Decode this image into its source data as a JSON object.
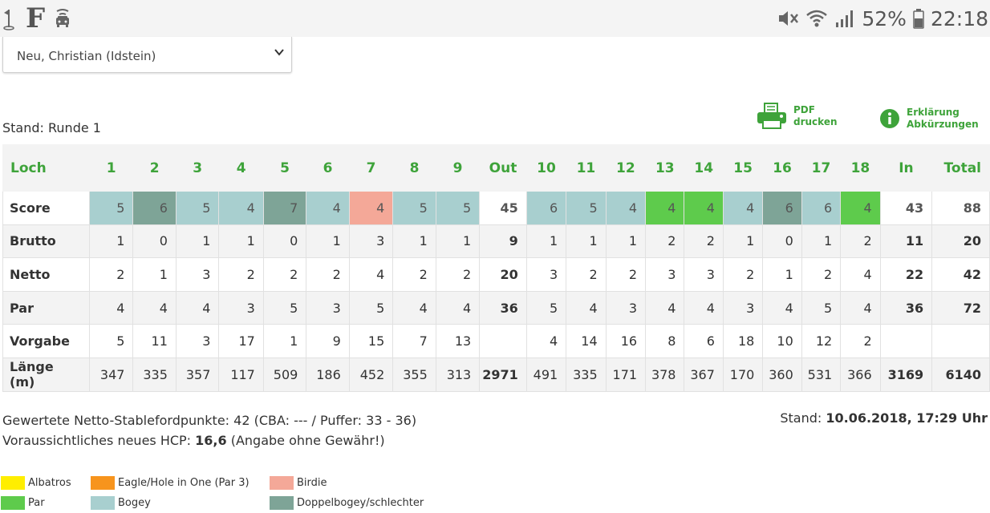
{
  "status_bar": {
    "left_icons": [
      "golf-flag-icon",
      "faz-logo-icon",
      "car-icon"
    ],
    "faz_letter": "F",
    "battery": "52%",
    "time": "22:18"
  },
  "player_select": {
    "value": "Neu, Christian (Idstein)"
  },
  "stand_runde": "Stand: Runde 1",
  "actions": {
    "pdf": {
      "line1": "PDF",
      "line2": "drucken"
    },
    "info": {
      "line1": "Erklärung",
      "line2": "Abkürzungen"
    }
  },
  "colors": {
    "accent": "#3ea33a",
    "albatros": "#ffee00",
    "eagle": "#f7941d",
    "birdie": "#f4a898",
    "par": "#5ecb4c",
    "bogey": "#a8cfcf",
    "double_bogey": "#7ea497"
  },
  "table": {
    "headers": [
      "Loch",
      "1",
      "2",
      "3",
      "4",
      "5",
      "6",
      "7",
      "8",
      "9",
      "Out",
      "10",
      "11",
      "12",
      "13",
      "14",
      "15",
      "16",
      "17",
      "18",
      "In",
      "Total"
    ],
    "rows": [
      {
        "label": "Score",
        "values": [
          "5",
          "6",
          "5",
          "4",
          "7",
          "4",
          "4",
          "5",
          "5",
          "45",
          "6",
          "5",
          "4",
          "4",
          "4",
          "4",
          "6",
          "6",
          "4",
          "43",
          "88"
        ],
        "classes": [
          "bogey",
          "double",
          "bogey",
          "bogey",
          "double",
          "bogey",
          "birdie",
          "bogey",
          "bogey",
          "",
          "bogey",
          "bogey",
          "bogey",
          "par",
          "par",
          "bogey",
          "double",
          "bogey",
          "par",
          "",
          ""
        ]
      },
      {
        "label": "Brutto",
        "values": [
          "1",
          "0",
          "1",
          "1",
          "0",
          "1",
          "3",
          "1",
          "1",
          "9",
          "1",
          "1",
          "1",
          "2",
          "2",
          "1",
          "0",
          "1",
          "2",
          "11",
          "20"
        ]
      },
      {
        "label": "Netto",
        "values": [
          "2",
          "1",
          "3",
          "2",
          "2",
          "2",
          "4",
          "2",
          "2",
          "20",
          "3",
          "2",
          "2",
          "3",
          "3",
          "2",
          "1",
          "2",
          "4",
          "22",
          "42"
        ]
      },
      {
        "label": "Par",
        "values": [
          "4",
          "4",
          "4",
          "3",
          "5",
          "3",
          "5",
          "4",
          "4",
          "36",
          "5",
          "4",
          "3",
          "4",
          "4",
          "3",
          "4",
          "5",
          "4",
          "36",
          "72"
        ]
      },
      {
        "label": "Vorgabe",
        "values": [
          "5",
          "11",
          "3",
          "17",
          "1",
          "9",
          "15",
          "7",
          "13",
          "",
          "4",
          "14",
          "16",
          "8",
          "6",
          "18",
          "10",
          "12",
          "2",
          "",
          ""
        ]
      },
      {
        "label": "Länge (m)",
        "values": [
          "347",
          "335",
          "357",
          "117",
          "509",
          "186",
          "452",
          "355",
          "313",
          "2971",
          "491",
          "335",
          "171",
          "378",
          "367",
          "170",
          "360",
          "531",
          "366",
          "3169",
          "6140"
        ]
      }
    ]
  },
  "stableford": {
    "line1": "Gewertete Netto-Stablefordpunkte: 42 (CBA: --- / Puffer: 33 - 36)",
    "line2_prefix": "Voraussichtliches neues HCP: ",
    "line2_hcp": "16,6",
    "line2_suffix": " (Angabe ohne Gewähr!)"
  },
  "stand_date": {
    "prefix": "Stand: ",
    "value": "10.06.2018, 17:29 Uhr"
  },
  "legend": [
    {
      "label": "Albatros",
      "color_key": "albatros"
    },
    {
      "label": "Eagle/Hole in One (Par 3)",
      "color_key": "eagle"
    },
    {
      "label": "Birdie",
      "color_key": "birdie"
    },
    {
      "label": "Par",
      "color_key": "par"
    },
    {
      "label": "Bogey",
      "color_key": "bogey"
    },
    {
      "label": "Doppelbogey/schlechter",
      "color_key": "double_bogey"
    }
  ]
}
